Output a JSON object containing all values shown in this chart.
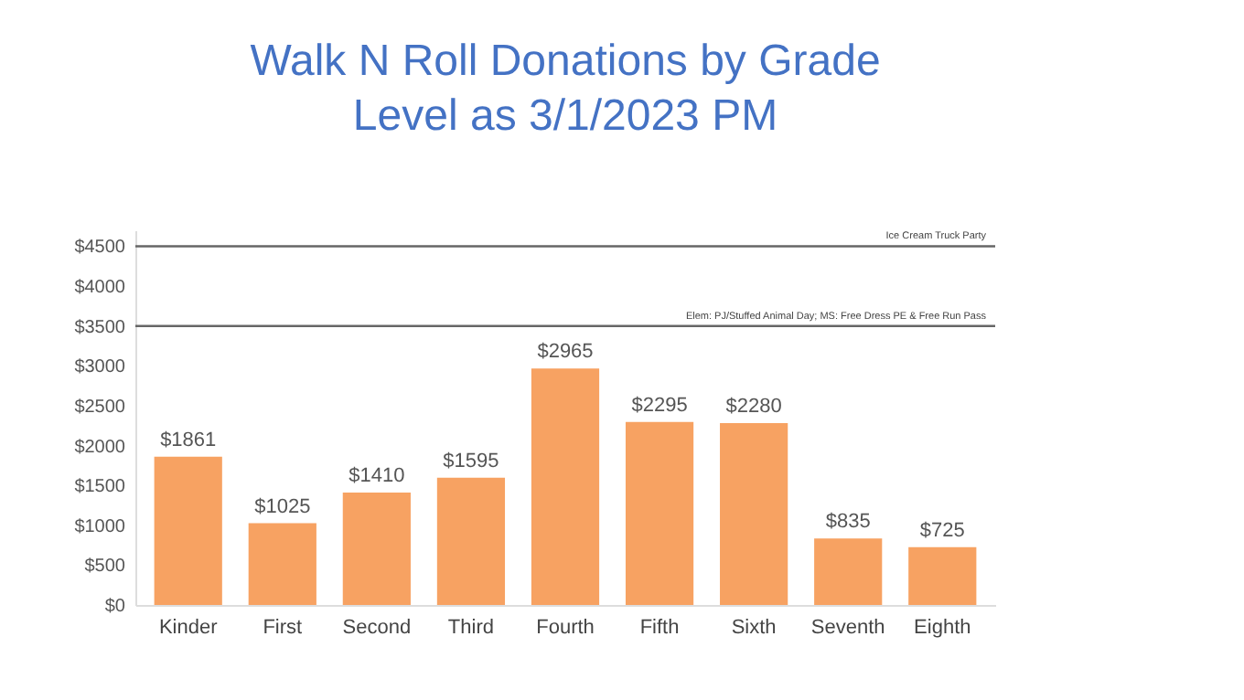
{
  "chart_data": {
    "type": "bar",
    "title": [
      "Walk N Roll Donations by Grade",
      "Level as 3/1/2023 PM"
    ],
    "categories": [
      "Kinder",
      "First",
      "Second",
      "Third",
      "Fourth",
      "Fifth",
      "Sixth",
      "Seventh",
      "Eighth"
    ],
    "values": [
      1861,
      1025,
      1410,
      1595,
      2965,
      2295,
      2280,
      835,
      725
    ],
    "value_labels": [
      "$1861",
      "$1025",
      "$1410",
      "$1595",
      "$2965",
      "$2295",
      "$2280",
      "$835",
      "$725"
    ],
    "color": "#f7a262",
    "ylim": [
      0,
      4700
    ],
    "yticks": [
      {
        "value": 0,
        "label": "$0"
      },
      {
        "value": 500,
        "label": "$500"
      },
      {
        "value": 1000,
        "label": "$1000"
      },
      {
        "value": 1500,
        "label": "$1500"
      },
      {
        "value": 2000,
        "label": "$2000"
      },
      {
        "value": 2500,
        "label": "$2500"
      },
      {
        "value": 3000,
        "label": "$3000"
      },
      {
        "value": 3500,
        "label": "$3500"
      },
      {
        "value": 4000,
        "label": "$4000"
      },
      {
        "value": 4500,
        "label": "$4500"
      }
    ],
    "ref_lines": [
      {
        "axis": "y",
        "value": 4500,
        "label": "Ice Cream Truck Party",
        "color": "#666666"
      },
      {
        "axis": "y",
        "value": 3500,
        "label": "Elem: PJ/Stuffed Animal Day; MS: Free Dress PE & Free Run Pass",
        "color": "#666666"
      }
    ],
    "grid": false
  }
}
